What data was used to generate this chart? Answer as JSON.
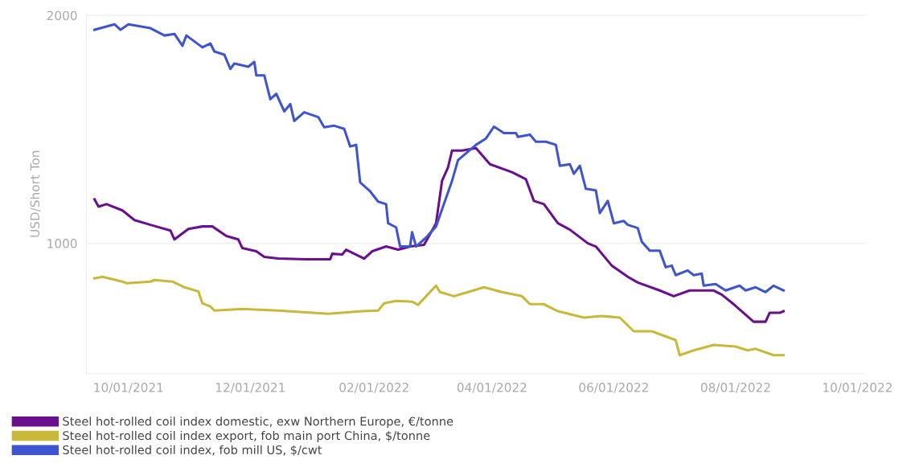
{
  "chart_data": {
    "type": "line",
    "ylabel": "USD/Short Ton",
    "ylim": [
      428,
      2005
    ],
    "yticks": [
      1000,
      2000
    ],
    "xlim": [
      "2021-09-10",
      "2022-10-05"
    ],
    "xticks": [
      {
        "value": "2021-10-01",
        "label": "10/01/2021"
      },
      {
        "value": "2021-12-01",
        "label": "12/01/2021"
      },
      {
        "value": "2022-02-01",
        "label": "02/01/2022"
      },
      {
        "value": "2022-04-01",
        "label": "04/01/2022"
      },
      {
        "value": "2022-06-01",
        "label": "06/01/2022"
      },
      {
        "value": "2022-08-01",
        "label": "08/01/2022"
      },
      {
        "value": "2022-10-01",
        "label": "10/01/2022"
      }
    ],
    "grid": "y",
    "legend": "bottom left",
    "marker": "none",
    "line_style": "solid",
    "series": [
      {
        "name": "Steel hot-rolled coil index domestic, exw Northern Europe, €/tonne",
        "color": "#6a0f8e",
        "x": [
          "2021-09-14",
          "2021-09-16",
          "2021-09-20",
          "2021-09-28",
          "2021-10-04",
          "2021-10-12",
          "2021-10-22",
          "2021-10-24",
          "2021-10-31",
          "2021-11-07",
          "2021-11-12",
          "2021-11-19",
          "2021-11-25",
          "2021-11-27",
          "2021-12-04",
          "2021-12-08",
          "2021-12-15",
          "2021-12-29",
          "2022-01-10",
          "2022-01-11",
          "2022-01-16",
          "2022-01-18",
          "2022-01-27",
          "2022-01-31",
          "2022-02-07",
          "2022-02-13",
          "2022-02-19",
          "2022-02-26",
          "2022-03-04",
          "2022-03-07",
          "2022-03-10",
          "2022-03-12",
          "2022-03-17",
          "2022-03-24",
          "2022-03-31",
          "2022-04-11",
          "2022-04-18",
          "2022-04-22",
          "2022-04-27",
          "2022-05-04",
          "2022-05-10",
          "2022-05-19",
          "2022-05-23",
          "2022-05-31",
          "2022-06-08",
          "2022-06-13",
          "2022-06-24",
          "2022-07-01",
          "2022-07-09",
          "2022-07-21",
          "2022-07-25",
          "2022-07-31",
          "2022-08-10",
          "2022-08-16",
          "2022-08-18",
          "2022-08-23",
          "2022-08-25"
        ],
        "values": [
          1193,
          1161,
          1172,
          1144,
          1102,
          1081,
          1056,
          1017,
          1063,
          1074,
          1074,
          1032,
          1017,
          979,
          965,
          940,
          933,
          930,
          930,
          954,
          951,
          972,
          933,
          965,
          986,
          972,
          986,
          993,
          1088,
          1274,
          1333,
          1407,
          1407,
          1418,
          1347,
          1312,
          1281,
          1186,
          1172,
          1088,
          1060,
          1000,
          986,
          902,
          853,
          828,
          793,
          768,
          793,
          793,
          775,
          733,
          656,
          656,
          695,
          695,
          702
        ]
      },
      {
        "name": "Steel hot-rolled coil index export, fob main port China, $/tonne",
        "color": "#c9b83a",
        "x": [
          "2021-09-14",
          "2021-09-18",
          "2021-09-28",
          "2021-09-30",
          "2021-10-12",
          "2021-10-14",
          "2021-10-23",
          "2021-10-29",
          "2021-11-05",
          "2021-11-07",
          "2021-11-11",
          "2021-11-13",
          "2021-11-27",
          "2021-12-15",
          "2022-01-09",
          "2022-01-26",
          "2022-02-03",
          "2022-02-06",
          "2022-02-12",
          "2022-02-20",
          "2022-02-23",
          "2022-03-04",
          "2022-03-06",
          "2022-03-13",
          "2022-03-20",
          "2022-03-28",
          "2022-04-06",
          "2022-04-16",
          "2022-04-20",
          "2022-04-27",
          "2022-05-04",
          "2022-05-17",
          "2022-05-26",
          "2022-06-04",
          "2022-06-11",
          "2022-06-20",
          "2022-07-02",
          "2022-07-04",
          "2022-07-11",
          "2022-07-21",
          "2022-08-01",
          "2022-08-07",
          "2022-08-11",
          "2022-08-20",
          "2022-08-25"
        ],
        "values": [
          846,
          853,
          832,
          825,
          832,
          839,
          832,
          807,
          789,
          737,
          723,
          705,
          712,
          705,
          691,
          702,
          705,
          737,
          747,
          744,
          730,
          814,
          786,
          768,
          786,
          807,
          786,
          768,
          733,
          733,
          702,
          674,
          681,
          674,
          614,
          614,
          575,
          509,
          530,
          554,
          547,
          530,
          537,
          509,
          509
        ]
      },
      {
        "name": "Steel hot-rolled coil index, fob mill US, $/cwt",
        "color": "#3f55d0",
        "x": [
          "2021-09-14",
          "2021-09-24",
          "2021-09-27",
          "2021-10-01",
          "2021-10-12",
          "2021-10-19",
          "2021-10-24",
          "2021-10-28",
          "2021-10-30",
          "2021-11-07",
          "2021-11-11",
          "2021-11-13",
          "2021-11-18",
          "2021-11-21",
          "2021-11-23",
          "2021-11-30",
          "2021-12-03",
          "2021-12-04",
          "2021-12-08",
          "2021-12-11",
          "2021-12-14",
          "2021-12-18",
          "2021-12-21",
          "2021-12-23",
          "2021-12-28",
          "2022-01-04",
          "2022-01-07",
          "2022-01-12",
          "2022-01-17",
          "2022-01-20",
          "2022-01-23",
          "2022-01-25",
          "2022-01-30",
          "2022-02-03",
          "2022-02-07",
          "2022-02-08",
          "2022-02-12",
          "2022-02-14",
          "2022-02-19",
          "2022-02-20",
          "2022-02-22",
          "2022-02-27",
          "2022-03-04",
          "2022-03-12",
          "2022-03-15",
          "2022-03-24",
          "2022-03-29",
          "2022-04-02",
          "2022-04-07",
          "2022-04-13",
          "2022-04-14",
          "2022-04-20",
          "2022-04-23",
          "2022-04-28",
          "2022-05-03",
          "2022-05-05",
          "2022-05-10",
          "2022-05-12",
          "2022-05-15",
          "2022-05-18",
          "2022-05-23",
          "2022-05-25",
          "2022-05-29",
          "2022-06-01",
          "2022-06-06",
          "2022-06-08",
          "2022-06-13",
          "2022-06-15",
          "2022-06-19",
          "2022-06-24",
          "2022-06-27",
          "2022-06-30",
          "2022-07-02",
          "2022-07-08",
          "2022-07-11",
          "2022-07-15",
          "2022-07-16",
          "2022-07-22",
          "2022-07-27",
          "2022-08-03",
          "2022-08-06",
          "2022-08-11",
          "2022-08-16",
          "2022-08-20",
          "2022-08-25"
        ],
        "values": [
          1937,
          1961,
          1937,
          1961,
          1944,
          1912,
          1919,
          1867,
          1912,
          1860,
          1877,
          1842,
          1828,
          1765,
          1789,
          1775,
          1796,
          1737,
          1737,
          1632,
          1656,
          1579,
          1611,
          1537,
          1575,
          1554,
          1509,
          1516,
          1502,
          1425,
          1432,
          1267,
          1228,
          1183,
          1172,
          1088,
          1070,
          986,
          986,
          1049,
          986,
          1025,
          1074,
          1274,
          1365,
          1432,
          1460,
          1512,
          1484,
          1484,
          1467,
          1477,
          1446,
          1446,
          1432,
          1340,
          1347,
          1305,
          1340,
          1239,
          1232,
          1133,
          1186,
          1088,
          1098,
          1081,
          1067,
          1007,
          968,
          968,
          895,
          902,
          860,
          881,
          860,
          867,
          814,
          821,
          793,
          814,
          793,
          807,
          786,
          814,
          793
        ]
      }
    ]
  }
}
